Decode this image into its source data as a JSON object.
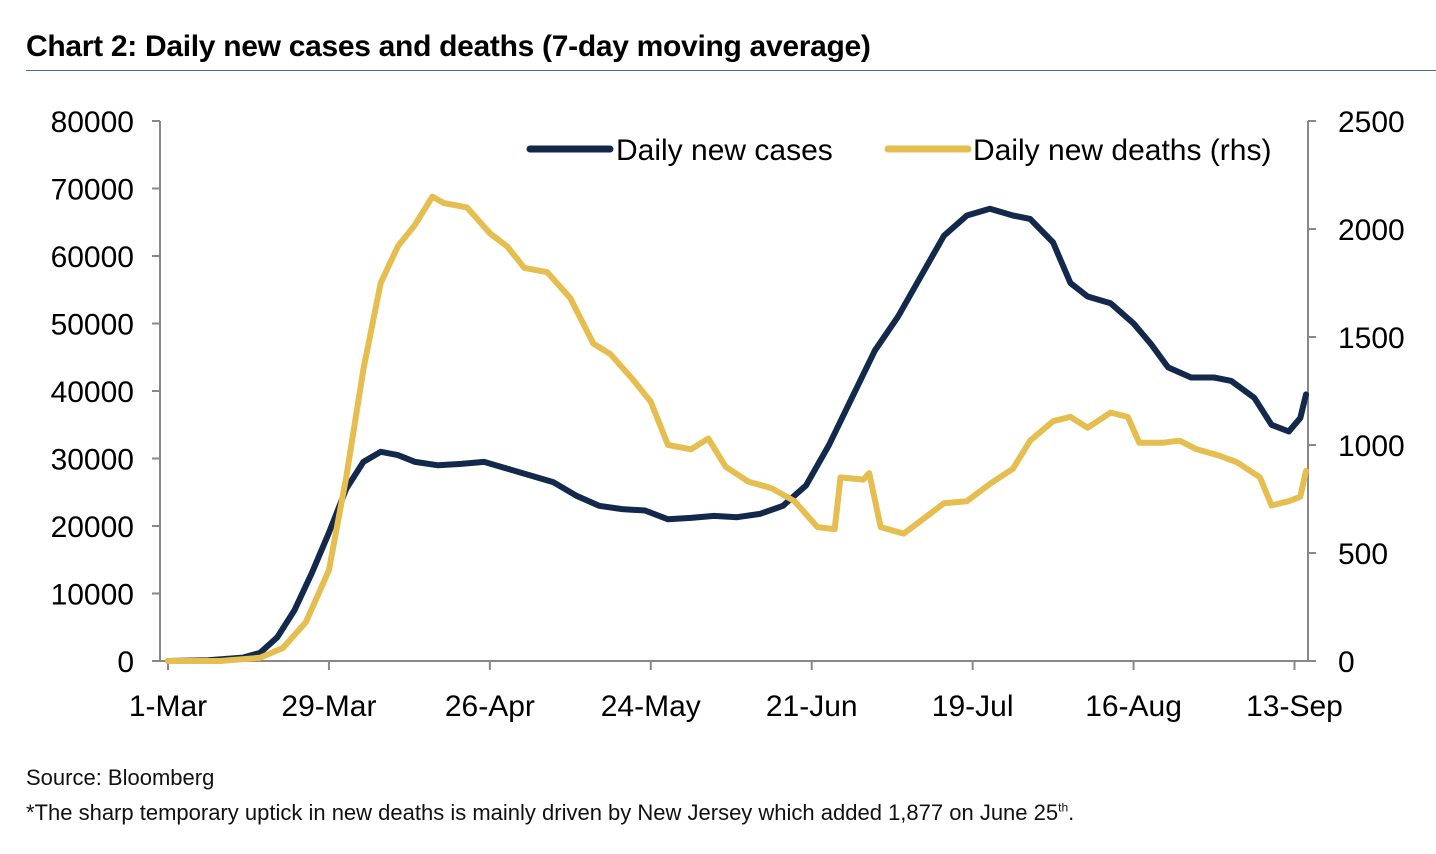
{
  "header": {
    "title": "Chart 2: Daily new cases and deaths (7-day moving average)"
  },
  "footer": {
    "source": "Source: Bloomberg",
    "note_prefix": "*The sharp temporary uptick in new deaths is mainly driven by New Jersey which added 1,877 on June 25",
    "note_sup": "th",
    "note_suffix": "."
  },
  "colors": {
    "cases": "#13294b",
    "deaths": "#e6bd4f",
    "axis": "#888888"
  },
  "chart_data": {
    "type": "line",
    "title": "Chart 2: Daily new cases and deaths (7-day moving average)",
    "x_axis": {
      "type": "date",
      "range": [
        "2020-03-01",
        "2020-09-15"
      ],
      "tick_labels": [
        "1-Mar",
        "29-Mar",
        "26-Apr",
        "24-May",
        "21-Jun",
        "19-Jul",
        "16-Aug",
        "13-Sep"
      ],
      "tick_dates": [
        "2020-03-01",
        "2020-03-29",
        "2020-04-26",
        "2020-05-24",
        "2020-06-21",
        "2020-07-19",
        "2020-08-16",
        "2020-09-13"
      ]
    },
    "y_left": {
      "range": [
        0,
        80000
      ],
      "ticks": [
        "0",
        "10000",
        "20000",
        "30000",
        "40000",
        "50000",
        "60000",
        "70000",
        "80000"
      ]
    },
    "y_right": {
      "range": [
        0,
        2500
      ],
      "ticks": [
        "0",
        "500",
        "1000",
        "1500",
        "2000",
        "2500"
      ]
    },
    "grid": false,
    "legend_position": "top-right",
    "series": [
      {
        "name": "Daily new cases",
        "axis": "left",
        "points": [
          [
            "2020-03-01",
            0
          ],
          [
            "2020-03-08",
            100
          ],
          [
            "2020-03-14",
            500
          ],
          [
            "2020-03-17",
            1200
          ],
          [
            "2020-03-20",
            3500
          ],
          [
            "2020-03-23",
            7500
          ],
          [
            "2020-03-26",
            13000
          ],
          [
            "2020-03-29",
            19000
          ],
          [
            "2020-04-01",
            25500
          ],
          [
            "2020-04-04",
            29500
          ],
          [
            "2020-04-07",
            31000
          ],
          [
            "2020-04-10",
            30500
          ],
          [
            "2020-04-13",
            29500
          ],
          [
            "2020-04-17",
            29000
          ],
          [
            "2020-04-21",
            29200
          ],
          [
            "2020-04-25",
            29500
          ],
          [
            "2020-04-29",
            28500
          ],
          [
            "2020-05-03",
            27500
          ],
          [
            "2020-05-07",
            26500
          ],
          [
            "2020-05-11",
            24500
          ],
          [
            "2020-05-15",
            23000
          ],
          [
            "2020-05-19",
            22500
          ],
          [
            "2020-05-23",
            22300
          ],
          [
            "2020-05-27",
            21000
          ],
          [
            "2020-05-31",
            21200
          ],
          [
            "2020-06-04",
            21500
          ],
          [
            "2020-06-08",
            21300
          ],
          [
            "2020-06-12",
            21800
          ],
          [
            "2020-06-16",
            23000
          ],
          [
            "2020-06-20",
            26000
          ],
          [
            "2020-06-24",
            32000
          ],
          [
            "2020-06-28",
            39000
          ],
          [
            "2020-07-02",
            46000
          ],
          [
            "2020-07-06",
            51000
          ],
          [
            "2020-07-10",
            57000
          ],
          [
            "2020-07-14",
            63000
          ],
          [
            "2020-07-18",
            66000
          ],
          [
            "2020-07-22",
            67000
          ],
          [
            "2020-07-26",
            66000
          ],
          [
            "2020-07-29",
            65500
          ],
          [
            "2020-08-02",
            62000
          ],
          [
            "2020-08-05",
            56000
          ],
          [
            "2020-08-08",
            54000
          ],
          [
            "2020-08-12",
            53000
          ],
          [
            "2020-08-16",
            50000
          ],
          [
            "2020-08-19",
            47000
          ],
          [
            "2020-08-22",
            43500
          ],
          [
            "2020-08-26",
            42000
          ],
          [
            "2020-08-30",
            42000
          ],
          [
            "2020-09-02",
            41500
          ],
          [
            "2020-09-06",
            39000
          ],
          [
            "2020-09-09",
            35000
          ],
          [
            "2020-09-12",
            34000
          ],
          [
            "2020-09-14",
            36000
          ],
          [
            "2020-09-15",
            39500
          ]
        ]
      },
      {
        "name": "Daily new deaths (rhs)",
        "axis": "right",
        "points": [
          [
            "2020-03-01",
            0
          ],
          [
            "2020-03-10",
            0
          ],
          [
            "2020-03-17",
            15
          ],
          [
            "2020-03-21",
            60
          ],
          [
            "2020-03-25",
            180
          ],
          [
            "2020-03-29",
            420
          ],
          [
            "2020-04-01",
            850
          ],
          [
            "2020-04-04",
            1350
          ],
          [
            "2020-04-07",
            1750
          ],
          [
            "2020-04-10",
            1920
          ],
          [
            "2020-04-13",
            2020
          ],
          [
            "2020-04-16",
            2150
          ],
          [
            "2020-04-18",
            2120
          ],
          [
            "2020-04-22",
            2100
          ],
          [
            "2020-04-26",
            1980
          ],
          [
            "2020-04-29",
            1920
          ],
          [
            "2020-05-02",
            1820
          ],
          [
            "2020-05-06",
            1800
          ],
          [
            "2020-05-10",
            1680
          ],
          [
            "2020-05-14",
            1470
          ],
          [
            "2020-05-17",
            1420
          ],
          [
            "2020-05-21",
            1300
          ],
          [
            "2020-05-24",
            1200
          ],
          [
            "2020-05-27",
            1000
          ],
          [
            "2020-05-31",
            980
          ],
          [
            "2020-06-03",
            1030
          ],
          [
            "2020-06-06",
            900
          ],
          [
            "2020-06-10",
            830
          ],
          [
            "2020-06-14",
            800
          ],
          [
            "2020-06-18",
            740
          ],
          [
            "2020-06-22",
            620
          ],
          [
            "2020-06-25",
            610
          ],
          [
            "2020-06-26",
            850
          ],
          [
            "2020-06-30",
            840
          ],
          [
            "2020-07-01",
            870
          ],
          [
            "2020-07-03",
            620
          ],
          [
            "2020-07-07",
            590
          ],
          [
            "2020-07-11",
            670
          ],
          [
            "2020-07-14",
            730
          ],
          [
            "2020-07-18",
            740
          ],
          [
            "2020-07-22",
            820
          ],
          [
            "2020-07-26",
            890
          ],
          [
            "2020-07-29",
            1020
          ],
          [
            "2020-08-02",
            1110
          ],
          [
            "2020-08-05",
            1130
          ],
          [
            "2020-08-08",
            1080
          ],
          [
            "2020-08-12",
            1150
          ],
          [
            "2020-08-15",
            1130
          ],
          [
            "2020-08-17",
            1010
          ],
          [
            "2020-08-21",
            1010
          ],
          [
            "2020-08-24",
            1020
          ],
          [
            "2020-08-27",
            980
          ],
          [
            "2020-08-31",
            950
          ],
          [
            "2020-09-03",
            920
          ],
          [
            "2020-09-07",
            850
          ],
          [
            "2020-09-09",
            720
          ],
          [
            "2020-09-12",
            740
          ],
          [
            "2020-09-14",
            760
          ],
          [
            "2020-09-15",
            880
          ]
        ]
      }
    ]
  }
}
